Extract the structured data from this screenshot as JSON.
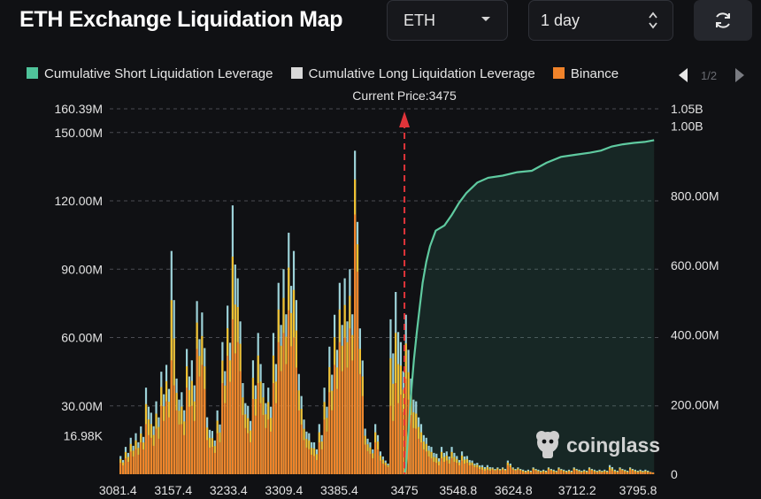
{
  "header": {
    "title": "ETH Exchange Liquidation Map",
    "coin_select": "ETH",
    "range_select": "1 day"
  },
  "legend": {
    "items": [
      {
        "label": "Cumulative Short Liquidation Leverage",
        "color": "#4fc39a"
      },
      {
        "label": "Cumulative Long Liquidation Leverage",
        "color": "#d8d8d8"
      },
      {
        "label": "Binance",
        "color": "#f0832a"
      }
    ],
    "page": "1/2"
  },
  "watermark": "coinglass",
  "chart_data": {
    "type": "bar",
    "title": "ETH Exchange Liquidation Map",
    "current_price_label": "Current Price:3475",
    "current_price": 3475,
    "x_ticks": [
      "3081.4",
      "3157.4",
      "3233.4",
      "3309.4",
      "3385.4",
      "3475",
      "3548.8",
      "3624.8",
      "3712.2",
      "3795.8"
    ],
    "x_range": [
      3075,
      3825
    ],
    "y_left_ticks": [
      {
        "value": 16.98,
        "label": "16.98K"
      },
      {
        "value": 30,
        "label": "30.00M"
      },
      {
        "value": 60,
        "label": "60.00M"
      },
      {
        "value": 90,
        "label": "90.00M"
      },
      {
        "value": 120,
        "label": "120.00M"
      },
      {
        "value": 150,
        "label": "150.00M"
      },
      {
        "value": 160.39,
        "label": "160.39M"
      }
    ],
    "y_left_range": [
      0,
      160.39
    ],
    "y_right_ticks": [
      {
        "value": 0,
        "label": "0"
      },
      {
        "value": 200,
        "label": "200.00M"
      },
      {
        "value": 400,
        "label": "400.00M"
      },
      {
        "value": 600,
        "label": "600.00M"
      },
      {
        "value": 800,
        "label": "800.00M"
      },
      {
        "value": 1000,
        "label": "1.00B"
      },
      {
        "value": 1050,
        "label": "1.05B"
      }
    ],
    "y_right_range": [
      0,
      1050
    ],
    "left_unit": "M",
    "right_unit": "M",
    "bars": [
      {
        "price": 3085,
        "total": 8,
        "binance": 5
      },
      {
        "price": 3092,
        "total": 12,
        "binance": 7
      },
      {
        "price": 3099,
        "total": 16,
        "binance": 10
      },
      {
        "price": 3106,
        "total": 18,
        "binance": 11
      },
      {
        "price": 3113,
        "total": 21,
        "binance": 14
      },
      {
        "price": 3120,
        "total": 38,
        "binance": 22
      },
      {
        "price": 3127,
        "total": 27,
        "binance": 16
      },
      {
        "price": 3134,
        "total": 32,
        "binance": 20
      },
      {
        "price": 3141,
        "total": 45,
        "binance": 30
      },
      {
        "price": 3148,
        "total": 48,
        "binance": 32
      },
      {
        "price": 3155,
        "total": 98,
        "binance": 50
      },
      {
        "price": 3162,
        "total": 42,
        "binance": 28
      },
      {
        "price": 3169,
        "total": 36,
        "binance": 22
      },
      {
        "price": 3176,
        "total": 55,
        "binance": 38
      },
      {
        "price": 3183,
        "total": 50,
        "binance": 30
      },
      {
        "price": 3190,
        "total": 76,
        "binance": 55
      },
      {
        "price": 3197,
        "total": 71,
        "binance": 48
      },
      {
        "price": 3204,
        "total": 25,
        "binance": 15
      },
      {
        "price": 3211,
        "total": 19,
        "binance": 12
      },
      {
        "price": 3218,
        "total": 28,
        "binance": 18
      },
      {
        "price": 3225,
        "total": 58,
        "binance": 40
      },
      {
        "price": 3232,
        "total": 74,
        "binance": 52
      },
      {
        "price": 3239,
        "total": 118,
        "binance": 68
      },
      {
        "price": 3246,
        "total": 86,
        "binance": 58
      },
      {
        "price": 3253,
        "total": 40,
        "binance": 26
      },
      {
        "price": 3260,
        "total": 30,
        "binance": 18
      },
      {
        "price": 3267,
        "total": 50,
        "binance": 33
      },
      {
        "price": 3274,
        "total": 62,
        "binance": 40
      },
      {
        "price": 3281,
        "total": 40,
        "binance": 26
      },
      {
        "price": 3288,
        "total": 38,
        "binance": 24
      },
      {
        "price": 3295,
        "total": 62,
        "binance": 40
      },
      {
        "price": 3302,
        "total": 84,
        "binance": 58
      },
      {
        "price": 3309,
        "total": 90,
        "binance": 62
      },
      {
        "price": 3316,
        "total": 106,
        "binance": 72
      },
      {
        "price": 3323,
        "total": 98,
        "binance": 60
      },
      {
        "price": 3330,
        "total": 44,
        "binance": 28
      },
      {
        "price": 3337,
        "total": 24,
        "binance": 15
      },
      {
        "price": 3344,
        "total": 18,
        "binance": 11
      },
      {
        "price": 3351,
        "total": 14,
        "binance": 8
      },
      {
        "price": 3358,
        "total": 22,
        "binance": 14
      },
      {
        "price": 3365,
        "total": 38,
        "binance": 24
      },
      {
        "price": 3372,
        "total": 56,
        "binance": 36
      },
      {
        "price": 3379,
        "total": 70,
        "binance": 48
      },
      {
        "price": 3386,
        "total": 84,
        "binance": 58
      },
      {
        "price": 3393,
        "total": 86,
        "binance": 60
      },
      {
        "price": 3400,
        "total": 90,
        "binance": 64
      },
      {
        "price": 3407,
        "total": 142,
        "binance": 114
      },
      {
        "price": 3414,
        "total": 64,
        "binance": 44
      },
      {
        "price": 3421,
        "total": 20,
        "binance": 13
      },
      {
        "price": 3428,
        "total": 14,
        "binance": 9
      },
      {
        "price": 3435,
        "total": 22,
        "binance": 14
      },
      {
        "price": 3442,
        "total": 10,
        "binance": 6
      },
      {
        "price": 3449,
        "total": 6,
        "binance": 4
      },
      {
        "price": 3456,
        "total": 68,
        "binance": 30
      },
      {
        "price": 3463,
        "total": 80,
        "binance": 40
      },
      {
        "price": 3470,
        "total": 58,
        "binance": 35
      },
      {
        "price": 3477,
        "total": 70,
        "binance": 42
      },
      {
        "price": 3484,
        "total": 42,
        "binance": 26
      },
      {
        "price": 3491,
        "total": 32,
        "binance": 20
      },
      {
        "price": 3498,
        "total": 22,
        "binance": 14
      },
      {
        "price": 3505,
        "total": 16,
        "binance": 10
      },
      {
        "price": 3512,
        "total": 12,
        "binance": 7
      },
      {
        "price": 3519,
        "total": 9,
        "binance": 5
      },
      {
        "price": 3526,
        "total": 12,
        "binance": 7
      },
      {
        "price": 3533,
        "total": 10,
        "binance": 6
      },
      {
        "price": 3540,
        "total": 12,
        "binance": 7
      },
      {
        "price": 3547,
        "total": 8,
        "binance": 5
      },
      {
        "price": 3554,
        "total": 10,
        "binance": 6
      },
      {
        "price": 3561,
        "total": 8,
        "binance": 5
      },
      {
        "price": 3568,
        "total": 6,
        "binance": 4
      },
      {
        "price": 3575,
        "total": 5,
        "binance": 3
      },
      {
        "price": 3582,
        "total": 4,
        "binance": 2
      },
      {
        "price": 3589,
        "total": 4,
        "binance": 2
      },
      {
        "price": 3596,
        "total": 3,
        "binance": 2
      },
      {
        "price": 3603,
        "total": 3,
        "binance": 2
      },
      {
        "price": 3610,
        "total": 3,
        "binance": 2
      },
      {
        "price": 3617,
        "total": 6,
        "binance": 4
      },
      {
        "price": 3624,
        "total": 3,
        "binance": 2
      },
      {
        "price": 3631,
        "total": 3,
        "binance": 2
      },
      {
        "price": 3638,
        "total": 2,
        "binance": 1
      },
      {
        "price": 3645,
        "total": 2,
        "binance": 1
      },
      {
        "price": 3652,
        "total": 3,
        "binance": 2
      },
      {
        "price": 3659,
        "total": 2,
        "binance": 1
      },
      {
        "price": 3666,
        "total": 2,
        "binance": 1
      },
      {
        "price": 3673,
        "total": 3,
        "binance": 2
      },
      {
        "price": 3680,
        "total": 2,
        "binance": 1
      },
      {
        "price": 3687,
        "total": 3,
        "binance": 2
      },
      {
        "price": 3694,
        "total": 2,
        "binance": 1
      },
      {
        "price": 3701,
        "total": 2,
        "binance": 1
      },
      {
        "price": 3708,
        "total": 3,
        "binance": 2
      },
      {
        "price": 3715,
        "total": 2,
        "binance": 1
      },
      {
        "price": 3722,
        "total": 2,
        "binance": 1
      },
      {
        "price": 3729,
        "total": 3,
        "binance": 2
      },
      {
        "price": 3736,
        "total": 2,
        "binance": 1
      },
      {
        "price": 3743,
        "total": 2,
        "binance": 1
      },
      {
        "price": 3750,
        "total": 2,
        "binance": 1
      },
      {
        "price": 3757,
        "total": 4,
        "binance": 2
      },
      {
        "price": 3764,
        "total": 2,
        "binance": 1
      },
      {
        "price": 3771,
        "total": 3,
        "binance": 2
      },
      {
        "price": 3778,
        "total": 2,
        "binance": 1
      },
      {
        "price": 3785,
        "total": 3,
        "binance": 2
      },
      {
        "price": 3792,
        "total": 2,
        "binance": 1
      },
      {
        "price": 3799,
        "total": 2,
        "binance": 1
      },
      {
        "price": 3806,
        "total": 2,
        "binance": 1
      },
      {
        "price": 3813,
        "total": 1,
        "binance": 1
      }
    ],
    "short_cumulative": [
      [
        3475,
        0
      ],
      [
        3477,
        20
      ],
      [
        3480,
        110
      ],
      [
        3484,
        230
      ],
      [
        3488,
        330
      ],
      [
        3492,
        410
      ],
      [
        3496,
        480
      ],
      [
        3500,
        550
      ],
      [
        3505,
        610
      ],
      [
        3510,
        655
      ],
      [
        3518,
        700
      ],
      [
        3530,
        715
      ],
      [
        3540,
        745
      ],
      [
        3550,
        780
      ],
      [
        3560,
        808
      ],
      [
        3575,
        838
      ],
      [
        3590,
        852
      ],
      [
        3610,
        858
      ],
      [
        3630,
        868
      ],
      [
        3650,
        872
      ],
      [
        3670,
        895
      ],
      [
        3690,
        912
      ],
      [
        3710,
        918
      ],
      [
        3730,
        924
      ],
      [
        3745,
        930
      ],
      [
        3760,
        942
      ],
      [
        3775,
        948
      ],
      [
        3790,
        952
      ],
      [
        3805,
        955
      ],
      [
        3818,
        960
      ]
    ]
  }
}
